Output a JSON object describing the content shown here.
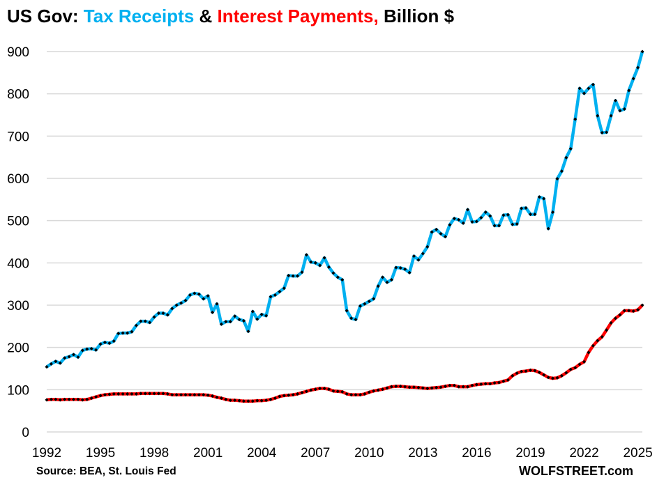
{
  "title": {
    "part1": "US Gov: ",
    "part2": "Tax Receipts",
    "part3": " & ",
    "part4": "Interest Payments,",
    "part5": " Billion $"
  },
  "source": "Source: BEA, St. Louis Fed",
  "brand": "WOLFSTREET.com",
  "colors": {
    "tax": "#00B0F0",
    "interest": "#FF0000",
    "marker": "#000000",
    "grid": "#D9D9D9"
  },
  "chart_data": {
    "type": "line",
    "title": "US Gov: Tax Receipts & Interest Payments, Billion $",
    "xlabel": "",
    "ylabel": "Billion $",
    "ylim": [
      0,
      900
    ],
    "yticks": [
      0,
      100,
      200,
      300,
      400,
      500,
      600,
      700,
      800,
      900
    ],
    "xticks": [
      "1992",
      "1995",
      "1998",
      "2001",
      "2004",
      "2007",
      "2010",
      "2013",
      "2016",
      "2019",
      "2022",
      "2025"
    ],
    "x_start": 1992,
    "x_step": 0.25,
    "frequency": "quarterly",
    "grid": true,
    "series": [
      {
        "name": "Tax Receipts",
        "color": "#00B0F0",
        "values": [
          154,
          161,
          167,
          163,
          175,
          178,
          183,
          177,
          193,
          196,
          197,
          194,
          208,
          212,
          210,
          215,
          233,
          234,
          234,
          237,
          252,
          262,
          262,
          259,
          272,
          281,
          281,
          277,
          292,
          300,
          305,
          311,
          324,
          328,
          326,
          315,
          322,
          283,
          303,
          255,
          261,
          261,
          274,
          266,
          263,
          238,
          285,
          267,
          278,
          275,
          320,
          324,
          332,
          340,
          370,
          369,
          369,
          378,
          419,
          402,
          400,
          394,
          412,
          390,
          376,
          366,
          360,
          287,
          269,
          266,
          298,
          303,
          309,
          315,
          345,
          366,
          354,
          360,
          389,
          388,
          385,
          377,
          416,
          407,
          422,
          438,
          473,
          479,
          469,
          462,
          490,
          505,
          502,
          494,
          526,
          497,
          498,
          507,
          520,
          511,
          488,
          488,
          513,
          514,
          491,
          492,
          529,
          530,
          515,
          515,
          556,
          552,
          481,
          520,
          599,
          617,
          649,
          670,
          740,
          813,
          801,
          813,
          822,
          748,
          708,
          709,
          748,
          784,
          760,
          764,
          808,
          836,
          862,
          900
        ]
      },
      {
        "name": "Interest Payments",
        "color": "#FF0000",
        "values": [
          76,
          77,
          77,
          76,
          77,
          77,
          77,
          77,
          76,
          77,
          80,
          83,
          86,
          88,
          89,
          90,
          90,
          90,
          90,
          90,
          90,
          91,
          91,
          91,
          91,
          91,
          91,
          90,
          88,
          88,
          88,
          88,
          88,
          88,
          88,
          88,
          87,
          85,
          82,
          80,
          77,
          75,
          75,
          74,
          73,
          73,
          73,
          74,
          74,
          75,
          77,
          80,
          84,
          86,
          87,
          88,
          90,
          93,
          96,
          99,
          101,
          103,
          103,
          101,
          97,
          96,
          95,
          90,
          88,
          88,
          88,
          90,
          94,
          97,
          99,
          101,
          104,
          107,
          108,
          108,
          107,
          106,
          106,
          105,
          104,
          103,
          104,
          105,
          106,
          108,
          110,
          110,
          107,
          107,
          107,
          110,
          112,
          113,
          114,
          114,
          116,
          117,
          120,
          123,
          133,
          139,
          143,
          144,
          146,
          145,
          141,
          135,
          129,
          127,
          128,
          133,
          140,
          148,
          152,
          160,
          166,
          188,
          204,
          216,
          225,
          241,
          258,
          269,
          277,
          287,
          287,
          286,
          289,
          300
        ]
      }
    ]
  }
}
